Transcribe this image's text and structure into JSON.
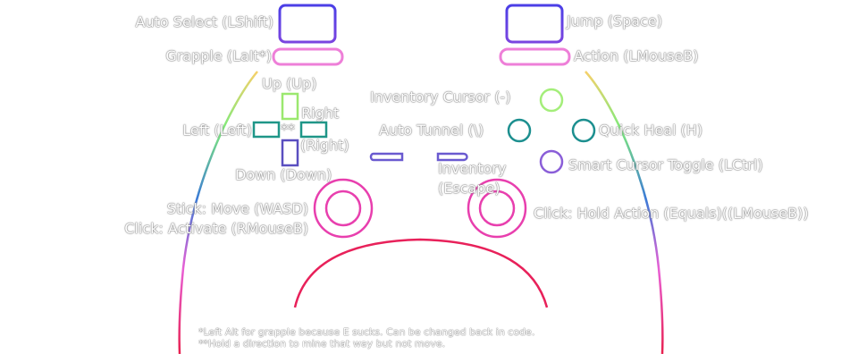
{
  "labels": {
    "auto_select": "Auto Select (LShift)",
    "jump": "Jump (Space)",
    "grapple": "Grapple (LaIt*)",
    "action": "Action (LMouseB)",
    "up": "Up (Up)",
    "right": "Right",
    "right_key": "(Right)",
    "left": "Left (Left)",
    "stars": "**",
    "down": "Down (Down)",
    "inventory_cursor": "Inventory Cursor (-)",
    "auto_tunnel": "Auto Tunnel (\\)",
    "quick_heal": "Quick Heal (H)",
    "inventory": "Inventory",
    "inventory_key": "(Escape)",
    "smart_cursor": "Smart Cursor Toggle (LCtrl)",
    "stick_move": "Stick: Move (WASD)",
    "stick_click": "Click: Activate (RMouseB)",
    "right_stick_click": "Click: Hold Action (Equals)((LMouseB))"
  },
  "footnotes": {
    "line1": "*Left Alt for grapple because E sucks. Can be changed back in code.",
    "line2": "**Hold a direction to mine that way but not move."
  },
  "colors": {
    "blue": "#5a3fe6",
    "pink": "#ef6fd3",
    "green": "#9be86f",
    "teal": "#1c8f8f",
    "purple": "#8a5ed8",
    "magenta": "#e23fa8",
    "red": "#e8214f"
  }
}
